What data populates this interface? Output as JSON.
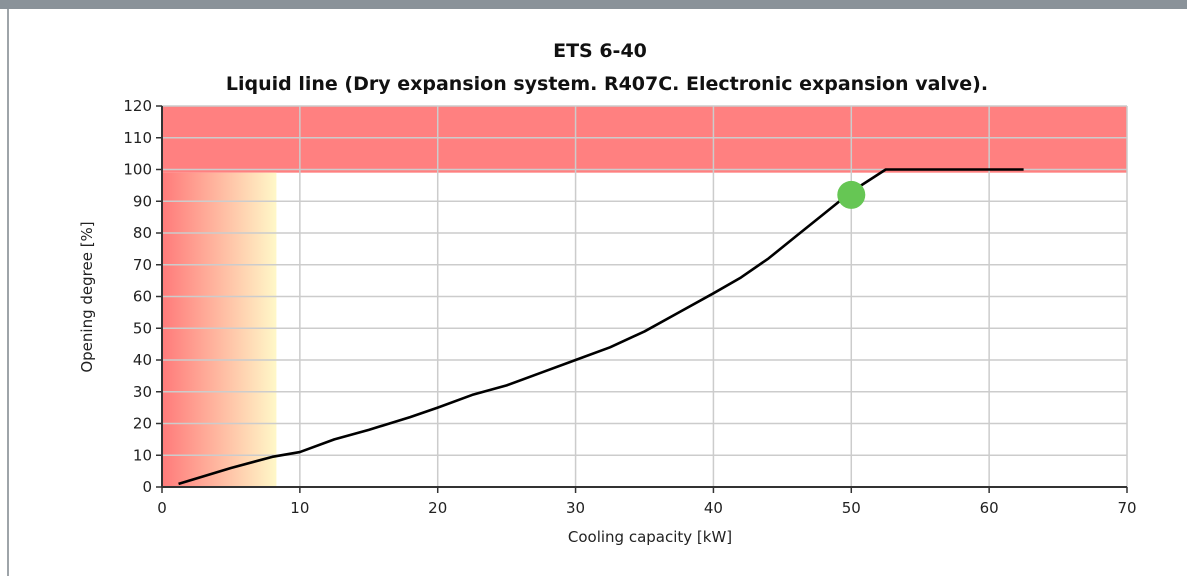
{
  "chart_data": {
    "type": "line",
    "title": "ETS 6-40",
    "subtitle": "Liquid line (Dry expansion system. R407C. Electronic expansion valve).",
    "xlabel": "Cooling capacity [kW]",
    "ylabel": "Opening degree [%]",
    "xlim": [
      0,
      70
    ],
    "ylim": [
      0,
      120
    ],
    "xticks": [
      0,
      10,
      20,
      30,
      40,
      50,
      60,
      70
    ],
    "yticks": [
      0,
      10,
      20,
      30,
      40,
      50,
      60,
      70,
      80,
      90,
      100,
      110,
      120
    ],
    "grid": true,
    "colors": {
      "line": "#000000",
      "zone_high": "#ff8080",
      "zone_low_start": "#ff7a7a",
      "zone_low_end": "#fff8c8",
      "point": "#66c654",
      "grid": "#cccccc"
    },
    "zones": [
      {
        "x": [
          0,
          70
        ],
        "y": [
          99,
          120
        ],
        "style": "red"
      },
      {
        "x": [
          0,
          8.3
        ],
        "y": [
          0,
          99
        ],
        "style": "red-to-yellow gradient"
      }
    ],
    "series": [
      {
        "x": [
          1.2,
          5,
          8,
          10,
          12.5,
          15,
          18,
          20,
          22.5,
          25,
          27.5,
          30,
          32.5,
          35,
          37.5,
          40,
          42,
          44,
          46,
          48,
          50,
          52.5,
          55,
          60,
          62.5
        ],
        "y": [
          1,
          6,
          9.5,
          11,
          15,
          18,
          22,
          25,
          29,
          32,
          36,
          40,
          44,
          49,
          55,
          61,
          66,
          72,
          79,
          86,
          93,
          100,
          100,
          100,
          100
        ]
      }
    ],
    "operating_point": {
      "x": 50,
      "y": 92
    }
  }
}
